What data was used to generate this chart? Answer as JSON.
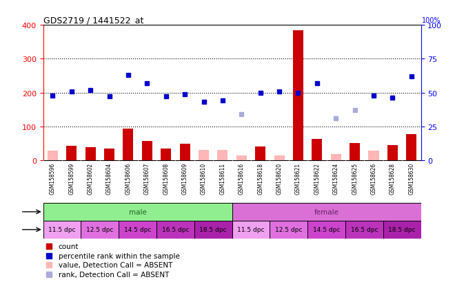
{
  "title": "GDS2719 / 1441522_at",
  "samples": [
    "GSM158596",
    "GSM158599",
    "GSM158602",
    "GSM158604",
    "GSM158606",
    "GSM158607",
    "GSM158608",
    "GSM158609",
    "GSM158610",
    "GSM158611",
    "GSM158616",
    "GSM158618",
    "GSM158620",
    "GSM158621",
    "GSM158622",
    "GSM158624",
    "GSM158625",
    "GSM158626",
    "GSM158628",
    "GSM158630"
  ],
  "count_values": [
    28,
    42,
    38,
    35,
    93,
    57,
    35,
    48,
    30,
    30,
    15,
    40,
    15,
    385,
    62,
    18,
    50,
    28,
    45,
    78
  ],
  "count_absent": [
    true,
    false,
    false,
    false,
    false,
    false,
    false,
    false,
    true,
    true,
    true,
    false,
    true,
    false,
    false,
    true,
    false,
    true,
    false,
    false
  ],
  "rank_values": [
    48,
    51,
    52,
    47,
    63,
    57,
    47,
    49,
    43,
    44,
    34,
    50,
    51,
    50,
    57,
    31,
    37,
    48,
    46,
    62
  ],
  "rank_absent": [
    false,
    false,
    false,
    false,
    false,
    false,
    false,
    false,
    false,
    false,
    true,
    false,
    false,
    false,
    false,
    true,
    true,
    false,
    false,
    false
  ],
  "ylim_left": [
    0,
    400
  ],
  "ylim_right": [
    0,
    100
  ],
  "yticks_left": [
    0,
    100,
    200,
    300,
    400
  ],
  "yticks_right": [
    0,
    25,
    50,
    75,
    100
  ],
  "bar_color_present": "#cc0000",
  "bar_color_absent": "#ffb6b6",
  "rank_color_present": "#0000cc",
  "rank_color_absent": "#aaaadd",
  "sample_bg_color": "#c8c8c8",
  "gender_male_color": "#90ee90",
  "gender_female_color": "#da70d6",
  "time_colors": [
    "#f0a0f0",
    "#e070e0",
    "#cc44cc",
    "#bb33bb",
    "#aa22aa"
  ],
  "legend_items": [
    {
      "label": "count",
      "color": "#cc0000"
    },
    {
      "label": "percentile rank within the sample",
      "color": "#0000cc"
    },
    {
      "label": "value, Detection Call = ABSENT",
      "color": "#ffb6b6"
    },
    {
      "label": "rank, Detection Call = ABSENT",
      "color": "#aaaadd"
    }
  ]
}
